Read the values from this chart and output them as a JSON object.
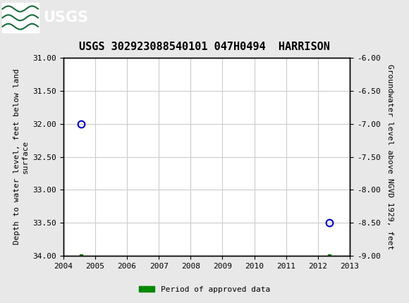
{
  "title": "USGS 302923088540101 047H0494  HARRISON",
  "header_color": "#1a6b3c",
  "background_color": "#e8e8e8",
  "plot_bg_color": "#ffffff",
  "data_points": [
    {
      "x": 2004.55,
      "y_left": 32.0
    },
    {
      "x": 2012.35,
      "y_left": 33.5
    }
  ],
  "green_squares": [
    {
      "x": 2004.55,
      "y_left": 34.0
    },
    {
      "x": 2012.35,
      "y_left": 34.0
    }
  ],
  "marker_color": "#0000cc",
  "marker_size": 7,
  "green_color": "#008800",
  "xlim": [
    2004,
    2013
  ],
  "ylim_left": [
    31.0,
    34.0
  ],
  "ylim_right": [
    -6.0,
    -9.0
  ],
  "yticks_left": [
    31.0,
    31.5,
    32.0,
    32.5,
    33.0,
    33.5,
    34.0
  ],
  "yticks_right": [
    -6.0,
    -6.5,
    -7.0,
    -7.5,
    -8.0,
    -8.5,
    -9.0
  ],
  "xticks": [
    2004,
    2005,
    2006,
    2007,
    2008,
    2009,
    2010,
    2011,
    2012,
    2013
  ],
  "ylabel_left": "Depth to water level, feet below land\nsurface",
  "ylabel_right": "Groundwater level above NGVD 1929, feet",
  "legend_label": "Period of approved data",
  "font_family": "monospace",
  "title_fontsize": 11,
  "axis_label_fontsize": 8,
  "tick_fontsize": 8,
  "grid_color": "#cccccc",
  "usgs_text": "USGS"
}
